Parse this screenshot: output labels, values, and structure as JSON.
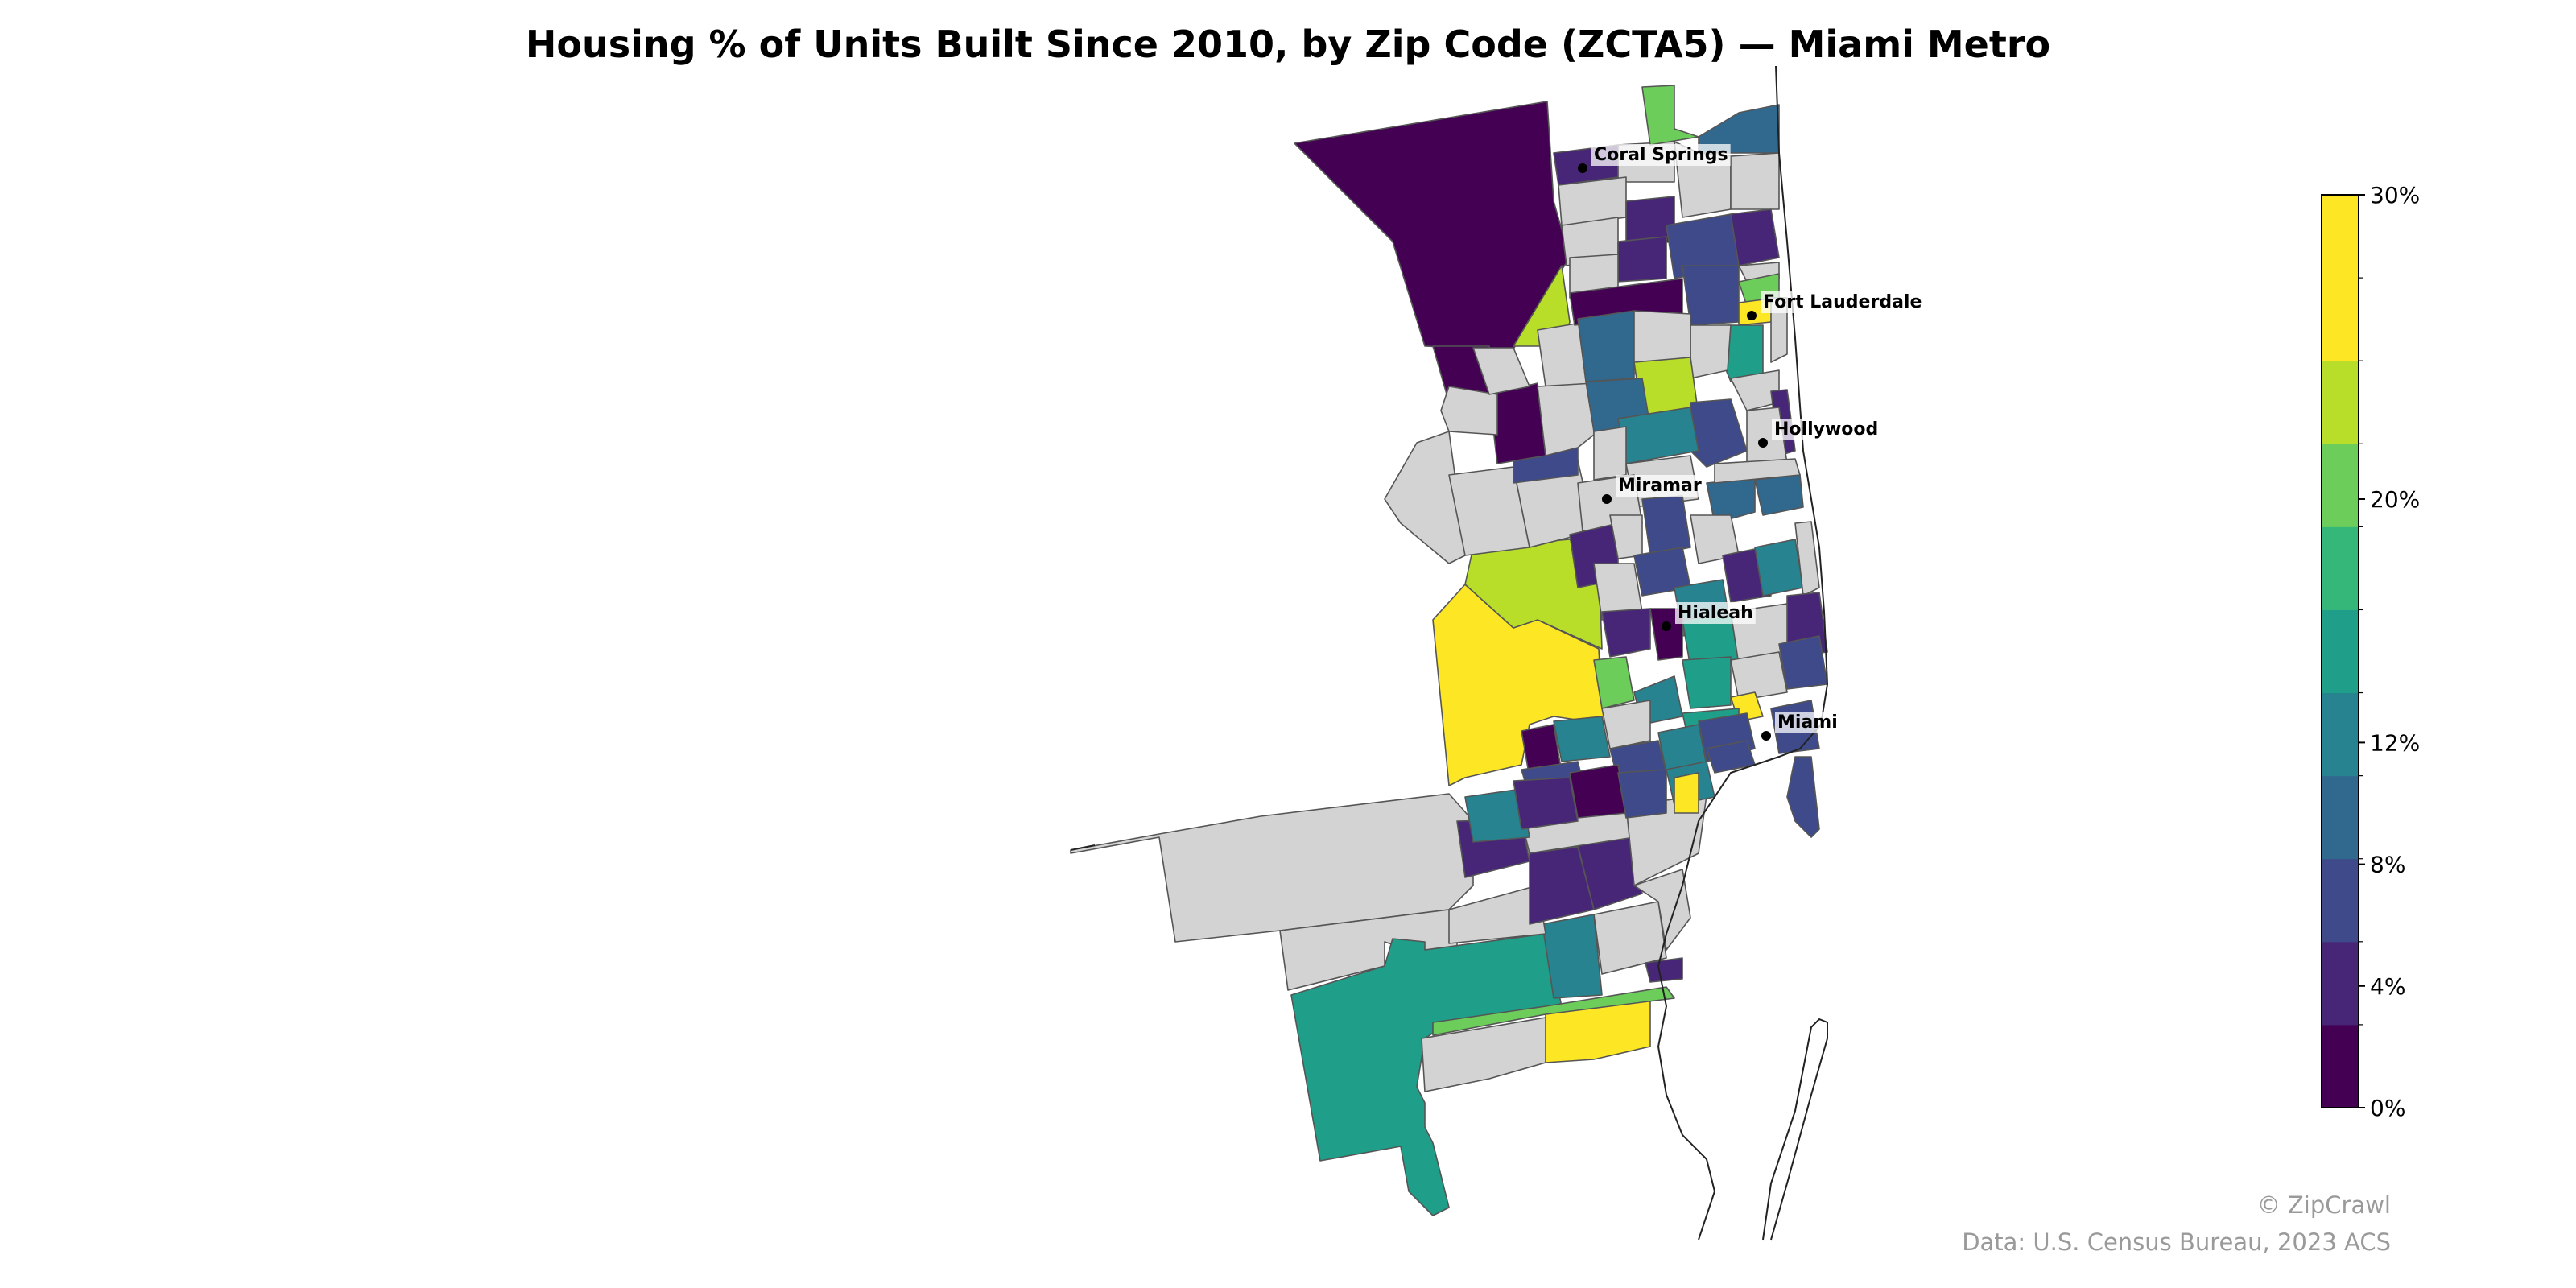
{
  "title": "Housing % of Units Built Since 2010, by Zip Code (ZCTA5) — Miami Metro",
  "credits": {
    "copyright": "© ZipCrawl",
    "source": "Data: U.S. Census Bureau, 2023 ACS"
  },
  "colorbar": {
    "min": 0,
    "max": 30,
    "tick_labels": [
      "0%",
      "4%",
      "8%",
      "12%",
      "20%",
      "30%"
    ],
    "tick_values": [
      0,
      4,
      8,
      12,
      20,
      30
    ],
    "bins": 11,
    "colors": [
      "#440154",
      "#482677",
      "#3f4a8a",
      "#31688e",
      "#26838f",
      "#1f9e89",
      "#35b779",
      "#6ccd5a",
      "#b8de29",
      "#fde725",
      "#fde725"
    ],
    "no_data_color": "#d3d3d3"
  },
  "cities": [
    {
      "name": "Coral Springs"
    },
    {
      "name": "Fort Lauderdale"
    },
    {
      "name": "Hollywood"
    },
    {
      "name": "Miramar"
    },
    {
      "name": "Hialeah"
    },
    {
      "name": "Miami"
    }
  ]
}
